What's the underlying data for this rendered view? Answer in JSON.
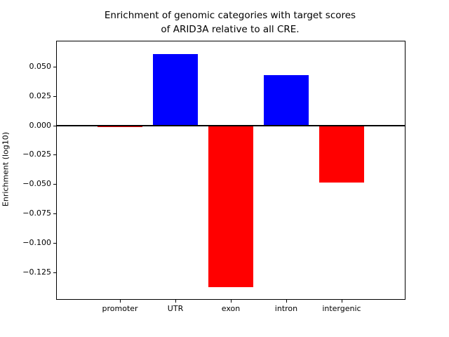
{
  "title": {
    "line1": "Enrichment of genomic categories with target scores",
    "line2": "of ARID3A relative to all CRE."
  },
  "colors": {
    "positive_bar": "#0000ff",
    "negative_bar": "#ff0000",
    "axis": "#000000",
    "background": "#ffffff"
  },
  "chart_data": {
    "type": "bar",
    "title": "Enrichment of genomic categories with target scores\nof ARID3A relative to all CRE.",
    "xlabel": "",
    "ylabel": "Enrichment (log10)",
    "categories": [
      "promoter",
      "UTR",
      "exon",
      "intron",
      "intergenic"
    ],
    "values": [
      -0.0015,
      0.061,
      -0.138,
      0.043,
      -0.049
    ],
    "bar_colors": [
      "#ff0000",
      "#0000ff",
      "#ff0000",
      "#0000ff",
      "#ff0000"
    ],
    "yticks": [
      0.05,
      0.025,
      0.0,
      -0.025,
      -0.05,
      -0.075,
      -0.1,
      -0.125
    ],
    "ytick_labels": [
      "0.050",
      "0.025",
      "0.000",
      "−0.025",
      "−0.050",
      "−0.075",
      "−0.100",
      "−0.125"
    ],
    "ylim": [
      -0.148,
      0.0715
    ],
    "grid": false,
    "legend": "none",
    "zero_line": true,
    "zero_line_color": "#000000"
  }
}
